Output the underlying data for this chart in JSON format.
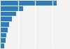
{
  "values": [
    82,
    33,
    22,
    16,
    12,
    10,
    8,
    7,
    5
  ],
  "bar_color": "#2e7bbf",
  "background_color": "#f2f2f2",
  "plot_background": "#f2f2f2",
  "xlim": [
    0,
    100
  ],
  "bar_height": 0.85,
  "grid_color": "#ffffff",
  "grid_linewidth": 0.8
}
